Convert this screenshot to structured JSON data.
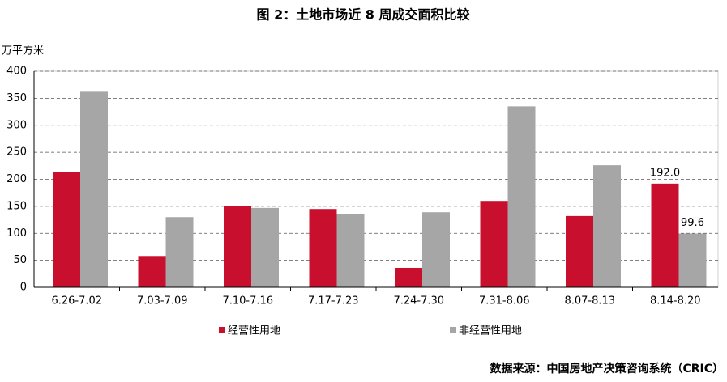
{
  "chart_data": {
    "type": "bar",
    "title": "图 2：土地市场近 8 周成交面积比较",
    "y_label": "万平方米",
    "source": "数据来源：中国房地产决策咨询系统（CRIC）",
    "categories": [
      "6.26-7.02",
      "7.03-7.09",
      "7.10-7.16",
      "7.17-7.23",
      "7.24-7.30",
      "7.31-8.06",
      "8.07-8.13",
      "8.14-8.20"
    ],
    "series": [
      {
        "name": "经营性用地",
        "color": "#c8102e",
        "values": [
          214,
          58,
          150,
          145,
          36,
          160,
          132,
          192.0
        ],
        "value_labels": [
          null,
          null,
          null,
          null,
          null,
          null,
          null,
          "192.0"
        ]
      },
      {
        "name": "非经营性用地",
        "color": "#a6a6a6",
        "values": [
          362,
          130,
          147,
          136,
          139,
          335,
          226,
          99.6
        ],
        "value_labels": [
          null,
          null,
          null,
          null,
          null,
          null,
          null,
          "99.6"
        ]
      }
    ],
    "ylim": [
      0,
      400
    ],
    "yticks": [
      0,
      50,
      100,
      150,
      200,
      250,
      300,
      350,
      400
    ],
    "grid": true
  }
}
